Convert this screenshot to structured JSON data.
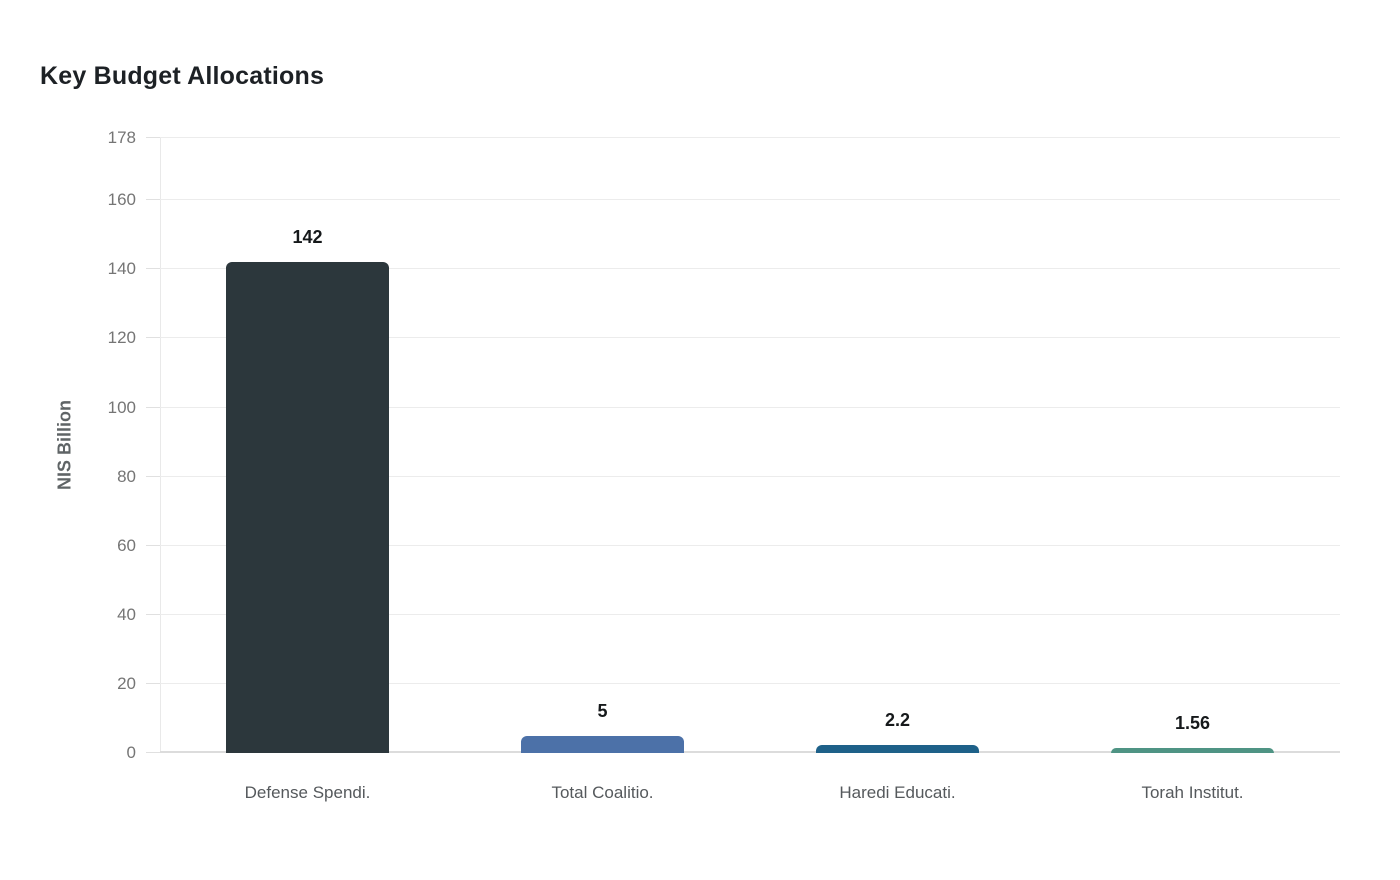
{
  "title": "Key Budget Allocations",
  "chart_data": {
    "type": "bar",
    "title": "Key Budget Allocations",
    "xlabel": "",
    "ylabel": "NIS Billion",
    "categories": [
      "Defense Spendi.",
      "Total Coalitio.",
      "Haredi Educati.",
      "Torah Institut."
    ],
    "values": [
      142,
      5,
      2.2,
      1.56
    ],
    "value_labels": [
      "142",
      "5",
      "2.2",
      "1.56"
    ],
    "bar_colors": [
      "#2c373c",
      "#4c71a8",
      "#1e6189",
      "#4f9484"
    ],
    "ylim": [
      0,
      178
    ],
    "yticks": [
      0,
      20,
      40,
      60,
      80,
      100,
      120,
      140,
      160,
      178
    ],
    "grid": true,
    "legend": false
  },
  "colors": {
    "gridline": "#ececec",
    "zero_axis_line": "#dcdcdc",
    "tick_label": "#757575",
    "x_label": "#55595c",
    "title": "#1d2125",
    "value_label": "#16191b",
    "y_axis_title": "#5f6466"
  }
}
